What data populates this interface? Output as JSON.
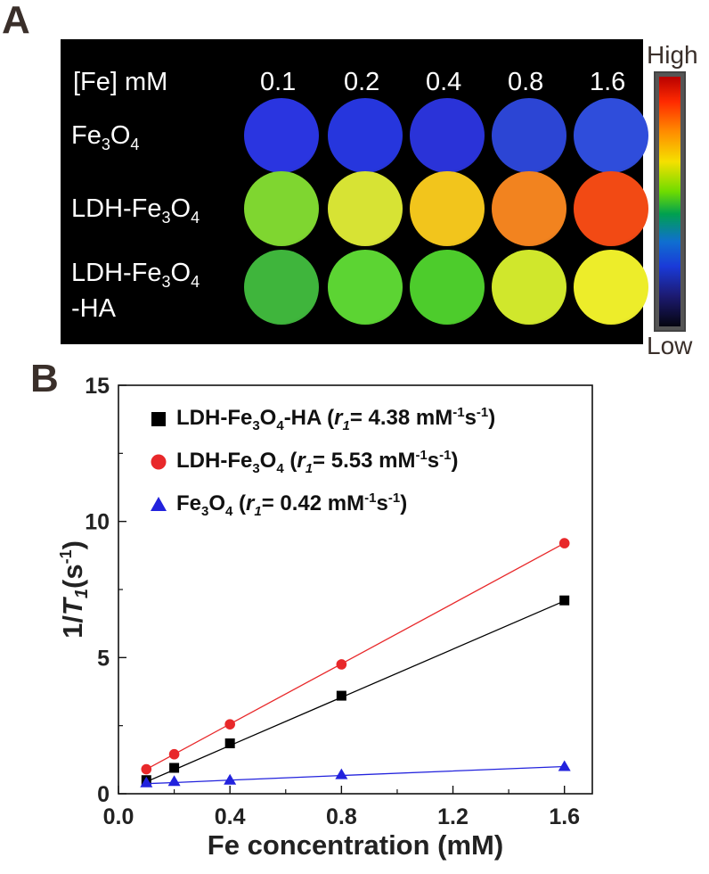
{
  "panelA": {
    "label": "A",
    "conc_header": "[Fe] mM",
    "concentrations": [
      "0.1",
      "0.2",
      "0.4",
      "0.8",
      "1.6"
    ],
    "rows": [
      {
        "name_main": "Fe",
        "name_sub1": "3",
        "name_mid": "O",
        "name_sub2": "4",
        "name_tail": "",
        "name_line2": "",
        "well_colors": [
          "#2a35e0",
          "#2636dd",
          "#2a33d8",
          "#2c45d4",
          "#2f4ddb"
        ]
      },
      {
        "name_main": "LDH-Fe",
        "name_sub1": "3",
        "name_mid": "O",
        "name_sub2": "4",
        "name_tail": "",
        "name_line2": "",
        "well_colors": [
          "#7fd630",
          "#d7e334",
          "#f2c51c",
          "#f2831f",
          "#f24a14"
        ]
      },
      {
        "name_main": "LDH-Fe",
        "name_sub1": "3",
        "name_mid": "O",
        "name_sub2": "4",
        "name_tail": "",
        "name_line2": "-HA",
        "well_colors": [
          "#3fb53c",
          "#5cd433",
          "#4dcc2c",
          "#d0e72c",
          "#eded2a"
        ]
      }
    ],
    "scale": {
      "high": "High",
      "low": "Low"
    }
  },
  "panelB": {
    "label": "B"
  },
  "chart_data": {
    "type": "scatter",
    "xlabel": "Fe concentration (mM)",
    "ylabel_main": "1/",
    "ylabel_var": "T",
    "ylabel_sub": "1",
    "ylabel_unit": "(s",
    "ylabel_sup": "-1",
    "ylabel_close": ")",
    "xlim": [
      0.0,
      1.7
    ],
    "ylim": [
      0,
      15
    ],
    "xticks": [
      "0.0",
      "0.4",
      "0.8",
      "1.2",
      "1.6"
    ],
    "xtick_values": [
      0.0,
      0.4,
      0.8,
      1.2,
      1.6
    ],
    "yticks": [
      "0",
      "5",
      "10",
      "15"
    ],
    "ytick_values": [
      0,
      5,
      10,
      15
    ],
    "series": [
      {
        "name": "LDH-Fe3O4-HA",
        "r1": "4.38",
        "color": "#000000",
        "marker": "square",
        "x": [
          0.1,
          0.2,
          0.4,
          0.8,
          1.6
        ],
        "y": [
          0.5,
          0.95,
          1.85,
          3.6,
          7.1
        ],
        "fit_y": [
          0.44,
          0.88,
          1.77,
          3.54,
          7.08
        ]
      },
      {
        "name": "LDH-Fe3O4",
        "r1": "5.53",
        "color": "#e8282a",
        "marker": "circle",
        "x": [
          0.1,
          0.2,
          0.4,
          0.8,
          1.6
        ],
        "y": [
          0.9,
          1.45,
          2.55,
          4.75,
          9.2
        ],
        "fit_y": [
          0.9,
          1.45,
          2.56,
          4.77,
          9.2
        ]
      },
      {
        "name": "Fe3O4",
        "r1": "0.42",
        "color": "#2222dd",
        "marker": "triangle",
        "x": [
          0.1,
          0.2,
          0.4,
          0.8,
          1.6
        ],
        "y": [
          0.4,
          0.45,
          0.5,
          0.7,
          1.0
        ],
        "fit_y": [
          0.37,
          0.41,
          0.5,
          0.67,
          1.0
        ]
      }
    ],
    "legend_position": "top-left",
    "legend_unit": " mM",
    "legend_unit_sup1": "-1",
    "legend_unit_s": "s",
    "legend_unit_sup2": "-1",
    "grid": false
  }
}
